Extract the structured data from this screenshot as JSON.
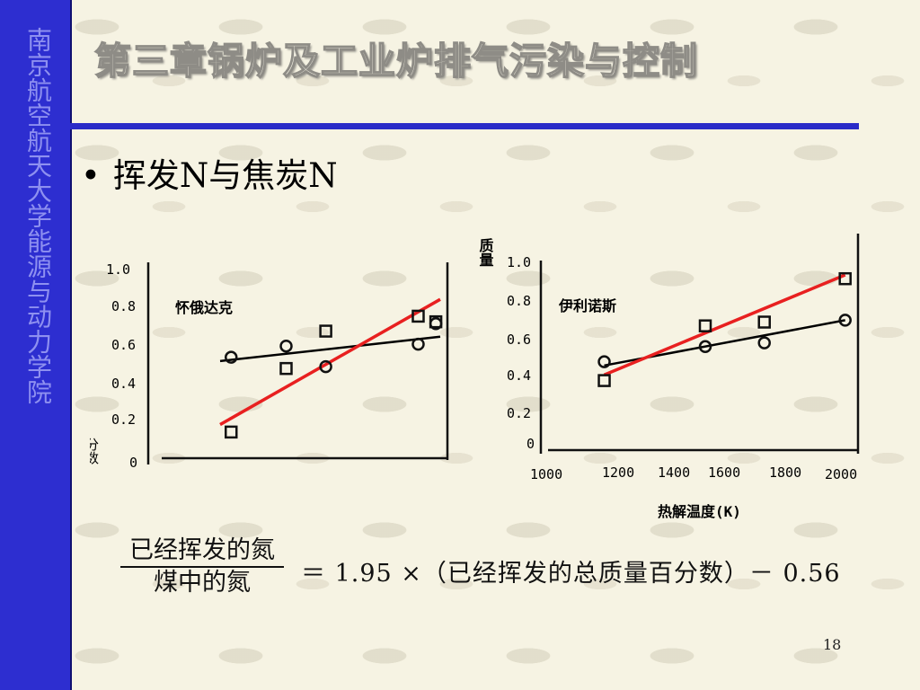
{
  "sidebar": {
    "text": "南京航空航天大学能源与动力学院"
  },
  "header": {
    "title": "第三章锅炉及工业炉排气污染与控制"
  },
  "bullet": {
    "marker": "•",
    "text": "挥发N与焦炭N"
  },
  "charts": {
    "y_label_top": "质量",
    "y_label_bottom": "分数",
    "x_label": "热解温度(K)",
    "left_title": "怀俄达克",
    "right_title": "伊利诺斯",
    "y_ticks": [
      "0",
      "0.2",
      "0.4",
      "0.6",
      "0.8",
      "1.0"
    ],
    "x_ticks": [
      "1000",
      "1200",
      "1400",
      "1600",
      "1800",
      "2000"
    ]
  },
  "chart_data": [
    {
      "type": "scatter",
      "title": "怀俄达克",
      "ylabel": "分数",
      "ylim": [
        0,
        1.0
      ],
      "series": [
        {
          "marker": "circle",
          "points": [
            [
              0.05,
              0.54
            ],
            [
              0.3,
              0.6
            ],
            [
              0.48,
              0.49
            ],
            [
              0.9,
              0.61
            ],
            [
              0.98,
              0.72
            ]
          ]
        },
        {
          "marker": "square",
          "points": [
            [
              0.05,
              0.14
            ],
            [
              0.3,
              0.48
            ],
            [
              0.48,
              0.68
            ],
            [
              0.9,
              0.76
            ],
            [
              0.98,
              0.73
            ]
          ]
        }
      ],
      "fit_lines": [
        {
          "color": "#000000",
          "from": [
            0.0,
            0.52
          ],
          "to": [
            1.0,
            0.65
          ]
        },
        {
          "color": "#e82020",
          "from": [
            0.0,
            0.18
          ],
          "to": [
            1.0,
            0.85
          ]
        }
      ]
    },
    {
      "type": "scatter",
      "title": "伊利诺斯",
      "xlabel": "热解温度(K)",
      "ylabel": "质量",
      "xlim": [
        1000,
        2000
      ],
      "ylim": [
        0,
        1.0
      ],
      "series": [
        {
          "marker": "circle",
          "points": [
            [
              1175,
              0.44
            ],
            [
              1500,
              0.52
            ],
            [
              1690,
              0.54
            ],
            [
              1950,
              0.66
            ]
          ]
        },
        {
          "marker": "square",
          "points": [
            [
              1175,
              0.34
            ],
            [
              1500,
              0.63
            ],
            [
              1690,
              0.65
            ],
            [
              1950,
              0.88
            ]
          ]
        }
      ],
      "fit_lines": [
        {
          "color": "#000000",
          "from": [
            1175,
            0.42
          ],
          "to": [
            1950,
            0.66
          ]
        },
        {
          "color": "#e82020",
          "from": [
            1175,
            0.37
          ],
          "to": [
            1950,
            0.9
          ]
        }
      ]
    }
  ],
  "formula": {
    "numerator": "已经挥发的氮",
    "denominator": "煤中的氮",
    "rhs": "＝ 1.95 ×（已经挥发的总质量百分数）－ 0.56"
  },
  "page": {
    "number": "18"
  }
}
